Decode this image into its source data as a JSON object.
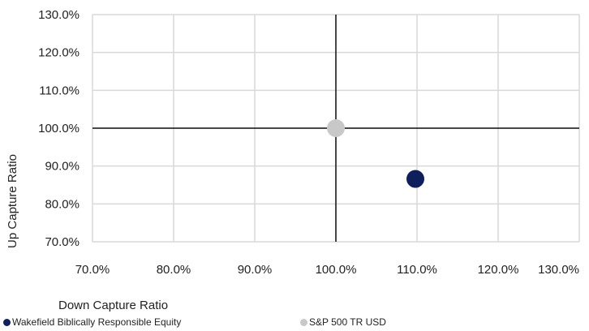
{
  "chart_data": {
    "type": "scatter",
    "xlabel": "Down Capture Ratio",
    "ylabel": "Up Capture Ratio",
    "xlim": [
      70,
      130
    ],
    "ylim": [
      70,
      130
    ],
    "x_ticks": [
      "70.0%",
      "80.0%",
      "90.0%",
      "100.0%",
      "110.0%",
      "120.0%",
      "130.0%"
    ],
    "y_ticks": [
      "70.0%",
      "80.0%",
      "90.0%",
      "100.0%",
      "110.0%",
      "120.0%",
      "130.0%"
    ],
    "grid": true,
    "reference_lines": {
      "x": 100,
      "y": 100
    },
    "legend_position": "bottom",
    "series": [
      {
        "name": "Wakefield Biblically Responsible Equity",
        "color": "#0f1f5c",
        "x": 109.8,
        "y": 86.6
      },
      {
        "name": "S&P 500 TR USD",
        "color": "#c8c8c8",
        "x": 100.0,
        "y": 100.0
      }
    ]
  }
}
